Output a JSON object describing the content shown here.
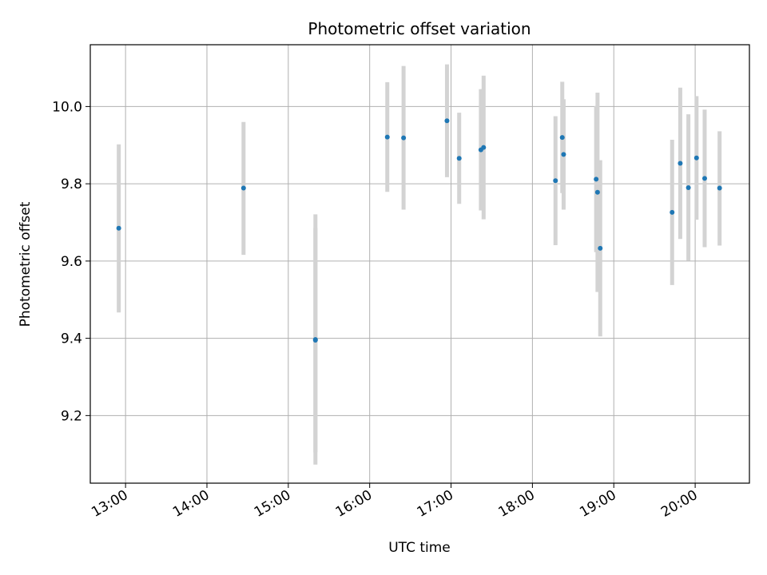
{
  "chart_data": {
    "type": "scatter",
    "title": "Photometric offset variation",
    "xlabel": "UTC time",
    "ylabel": "Photometric offset",
    "x_tick_labels": [
      "13:00",
      "14:00",
      "15:00",
      "16:00",
      "17:00",
      "18:00",
      "19:00",
      "20:00"
    ],
    "y_tick_labels": [
      "9.2",
      "9.4",
      "9.6",
      "9.8",
      "10.0"
    ],
    "x_ticks": [
      "13:00",
      "14:00",
      "15:00",
      "16:00",
      "17:00",
      "18:00",
      "19:00",
      "20:00"
    ],
    "y_ticks": [
      9.2,
      9.4,
      9.6,
      9.8,
      10.0
    ],
    "xlim": [
      "12:34",
      "20:40"
    ],
    "ylim": [
      9.025,
      10.16
    ],
    "grid": true,
    "points": [
      {
        "time": "12:55",
        "value": 9.685,
        "low": 9.467,
        "high": 9.902
      },
      {
        "time": "14:27",
        "value": 9.789,
        "low": 9.616,
        "high": 9.96
      },
      {
        "time": "15:20",
        "value": 9.397,
        "low": 9.073,
        "high": 9.721
      },
      {
        "time": "15:20",
        "value": 9.395,
        "low": 9.105,
        "high": 9.685
      },
      {
        "time": "16:13",
        "value": 9.921,
        "low": 9.779,
        "high": 10.063
      },
      {
        "time": "16:25",
        "value": 9.919,
        "low": 9.733,
        "high": 10.105
      },
      {
        "time": "16:57",
        "value": 9.963,
        "low": 9.817,
        "high": 10.109
      },
      {
        "time": "17:06",
        "value": 9.866,
        "low": 9.748,
        "high": 9.984
      },
      {
        "time": "17:22",
        "value": 9.888,
        "low": 9.731,
        "high": 10.045
      },
      {
        "time": "17:24",
        "value": 9.894,
        "low": 9.708,
        "high": 10.08
      },
      {
        "time": "18:17",
        "value": 9.808,
        "low": 9.641,
        "high": 9.975
      },
      {
        "time": "18:22",
        "value": 9.92,
        "low": 9.776,
        "high": 10.064
      },
      {
        "time": "18:23",
        "value": 9.876,
        "low": 9.733,
        "high": 10.019
      },
      {
        "time": "18:47",
        "value": 9.812,
        "low": 9.623,
        "high": 10.001
      },
      {
        "time": "18:48",
        "value": 9.778,
        "low": 9.52,
        "high": 10.036
      },
      {
        "time": "18:50",
        "value": 9.633,
        "low": 9.405,
        "high": 9.861
      },
      {
        "time": "19:43",
        "value": 9.726,
        "low": 9.538,
        "high": 9.914
      },
      {
        "time": "19:49",
        "value": 9.853,
        "low": 9.657,
        "high": 10.049
      },
      {
        "time": "19:55",
        "value": 9.79,
        "low": 9.601,
        "high": 9.98
      },
      {
        "time": "20:01",
        "value": 9.867,
        "low": 9.707,
        "high": 10.027
      },
      {
        "time": "20:07",
        "value": 9.814,
        "low": 9.636,
        "high": 9.992
      },
      {
        "time": "20:18",
        "value": 9.789,
        "low": 9.64,
        "high": 9.936
      }
    ],
    "marker_color": "#1f77b4",
    "errorbar_color": "#d3d3d3",
    "grid_color": "#b0b0b0"
  }
}
